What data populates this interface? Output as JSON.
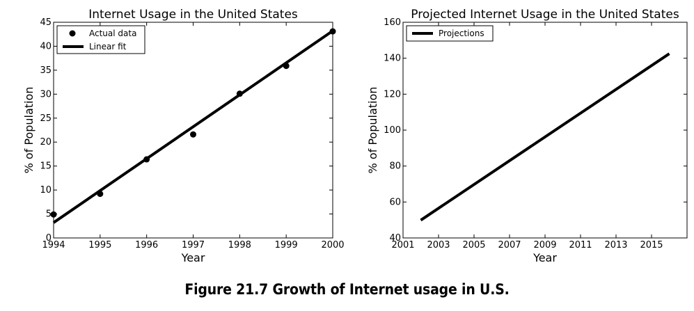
{
  "caption": "Figure 21.7 Growth of Internet usage in U.S.",
  "chart_data": [
    {
      "type": "line",
      "title": "Internet Usage in the United States",
      "xlabel": "Year",
      "ylabel": "% of Population",
      "xlim": [
        1994,
        2000
      ],
      "ylim": [
        0,
        45
      ],
      "xticks": [
        1994,
        1995,
        1996,
        1997,
        1998,
        1999,
        2000
      ],
      "yticks": [
        0,
        5,
        10,
        15,
        20,
        25,
        30,
        35,
        40,
        45
      ],
      "legend_position": "top-left",
      "grid": false,
      "series": [
        {
          "name": "Actual data",
          "style": "points",
          "x": [
            1994,
            1995,
            1996,
            1997,
            1998,
            1999,
            2000
          ],
          "y": [
            4.9,
            9.2,
            16.4,
            21.6,
            30.1,
            35.9,
            43.1
          ]
        },
        {
          "name": "Linear fit",
          "style": "line",
          "x": [
            1994,
            2000
          ],
          "y": [
            3.2,
            43.2
          ]
        }
      ]
    },
    {
      "type": "line",
      "title": "Projected Internet Usage in the United States",
      "xlabel": "Year",
      "ylabel": "% of Population",
      "xlim": [
        2001,
        2017
      ],
      "ylim": [
        40,
        160
      ],
      "xticks": [
        2001,
        2003,
        2005,
        2007,
        2009,
        2011,
        2013,
        2015
      ],
      "yticks": [
        40,
        60,
        80,
        100,
        120,
        140,
        160
      ],
      "legend_position": "top-left",
      "grid": false,
      "series": [
        {
          "name": "Projections",
          "style": "line",
          "x": [
            2002,
            2016
          ],
          "y": [
            49.9,
            142.5
          ]
        }
      ]
    }
  ],
  "colors": {
    "line": "#000000",
    "background": "#ffffff"
  }
}
